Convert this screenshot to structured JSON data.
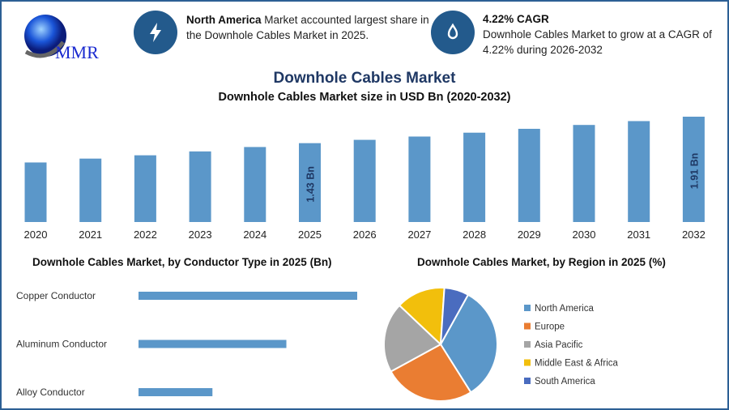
{
  "logo": {
    "text": "MMR"
  },
  "info1": {
    "bold": "North America",
    "text": " Market accounted largest share in the Downhole Cables Market in 2025.",
    "icon": "lightning-icon"
  },
  "info2": {
    "heading": "4.22% CAGR",
    "text": "Downhole Cables Market to grow at a CAGR of 4.22% during 2026-2032",
    "icon": "growth-drop-icon"
  },
  "main_title": "Downhole Cables Market",
  "colors": {
    "bar": "#5b97c9",
    "navy": "#1f3864",
    "frame": "#2c5f94"
  },
  "chart_data": [
    {
      "type": "bar",
      "title": "Downhole Cables Market size in USD Bn (2020-2032)",
      "categories": [
        "2020",
        "2021",
        "2022",
        "2023",
        "2024",
        "2025",
        "2026",
        "2027",
        "2028",
        "2029",
        "2030",
        "2031",
        "2032"
      ],
      "values": [
        1.08,
        1.15,
        1.21,
        1.28,
        1.36,
        1.43,
        1.49,
        1.55,
        1.62,
        1.69,
        1.76,
        1.83,
        1.91
      ],
      "data_labels": {
        "2025": "1.43 Bn",
        "2032": "1.91 Bn"
      },
      "xlabel": "",
      "ylabel": "",
      "ylim": [
        0,
        1.95
      ],
      "grid": false
    },
    {
      "type": "bar",
      "orientation": "horizontal",
      "title": "Downhole Cables Market, by Conductor Type in 2025 (Bn)",
      "categories": [
        "Copper Conductor",
        "Aluminum Conductor",
        "Alloy Conductor"
      ],
      "values": [
        0.71,
        0.48,
        0.24
      ]
    },
    {
      "type": "pie",
      "title": "Downhole Cables Market, by Region in 2025 (%)",
      "labels": [
        "North America",
        "Europe",
        "Asia Pacific",
        "Middle East & Africa",
        "South America"
      ],
      "values": [
        33,
        26,
        20,
        14,
        7
      ],
      "colors": [
        "#5b97c9",
        "#ea7d32",
        "#a5a5a5",
        "#f2bf0c",
        "#4a6cbf"
      ],
      "legend": "right"
    }
  ]
}
